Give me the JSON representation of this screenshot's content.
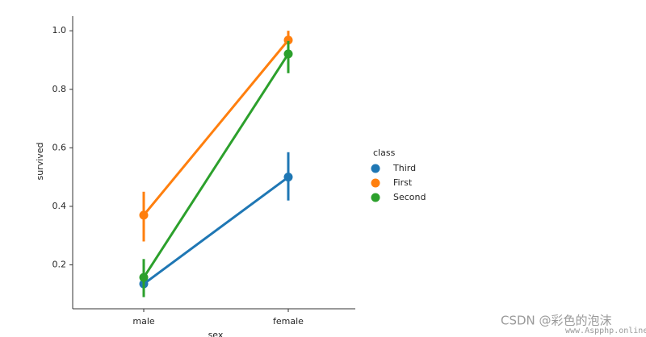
{
  "chart_data": {
    "type": "point",
    "xlabel": "sex",
    "ylabel": "survived",
    "categories": [
      "male",
      "female"
    ],
    "legend_title": "class",
    "legend": "right",
    "series": [
      {
        "name": "Third",
        "color": "#1f77b4",
        "values": [
          0.135,
          0.5
        ],
        "ci_low": [
          0.09,
          0.42
        ],
        "ci_high": [
          0.18,
          0.585
        ]
      },
      {
        "name": "First",
        "color": "#ff7f0e",
        "values": [
          0.37,
          0.968
        ],
        "ci_low": [
          0.28,
          0.945
        ],
        "ci_high": [
          0.45,
          1.0
        ]
      },
      {
        "name": "Second",
        "color": "#2ca02c",
        "values": [
          0.157,
          0.921
        ],
        "ci_low": [
          0.09,
          0.855
        ],
        "ci_high": [
          0.22,
          0.965
        ]
      }
    ],
    "ylim": [
      0.05,
      1.05
    ],
    "yticks": [
      0.2,
      0.4,
      0.6,
      0.8,
      {
        "value": 1,
        "label": "1.0"
      }
    ],
    "grid": false
  },
  "watermark": {
    "main": "CSDN @彩色的泡沫",
    "site": "www.Aspphp.online"
  }
}
